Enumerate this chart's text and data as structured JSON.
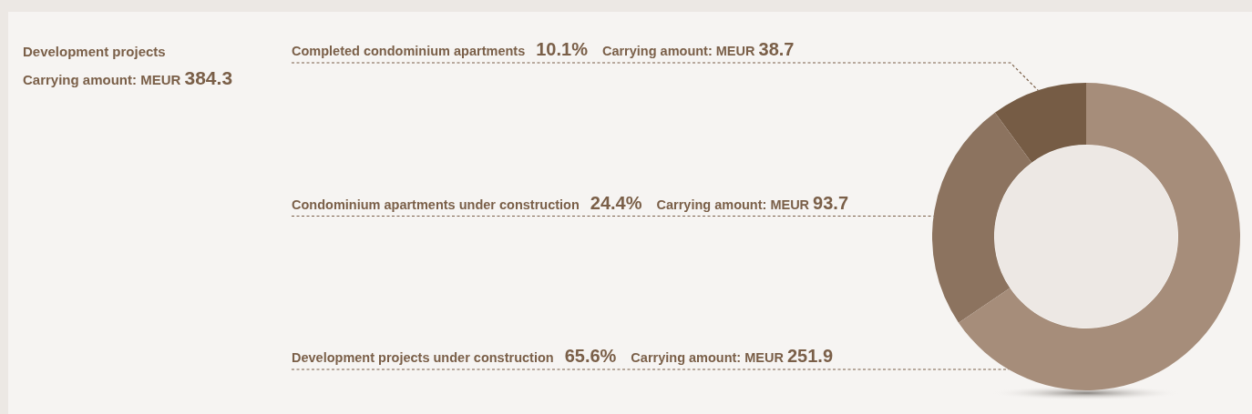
{
  "chart_data": {
    "type": "donut",
    "title": "Development projects",
    "subtitle": "Carrying amount: MEUR 384.3",
    "categories": [
      "Completed condominium apartments",
      "Condominium apartments under construction",
      "Development projects under construction"
    ],
    "values": [
      10.1,
      24.4,
      65.6
    ],
    "colors": [
      "#765c45",
      "#8c735f",
      "#a68d7a"
    ],
    "value_labels": [
      "10.1%",
      "24.4%",
      "65.6%"
    ],
    "annotations": [
      "Carrying amount: MEUR 38.7",
      "Carrying amount: MEUR 93.7",
      "Carrying amount: MEUR 251.9"
    ]
  }
}
